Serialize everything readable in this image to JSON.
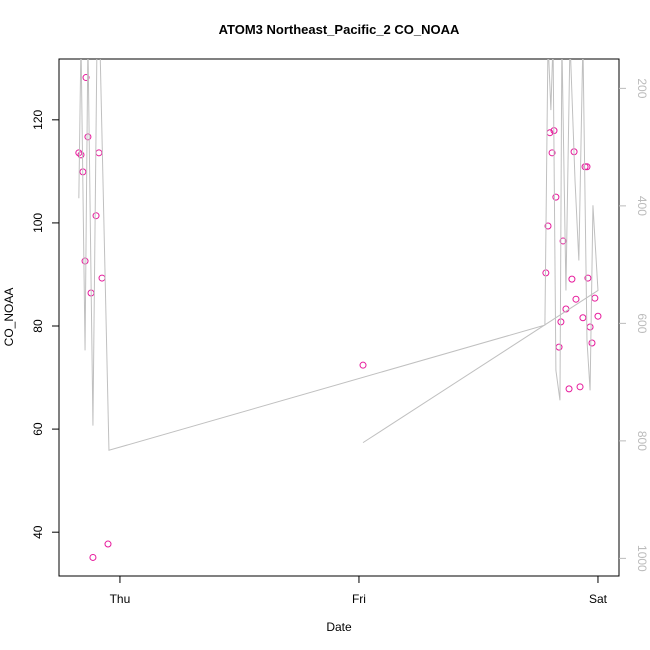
{
  "chart_data": {
    "type": "scatter",
    "title": "ATOM3 Northeast_Pacific_2 CO_NOAA",
    "xlabel": "Date",
    "ylabel": "CO_NOAA",
    "xlim": [
      -0.255,
      2.088
    ],
    "xticks": [
      {
        "value": 0,
        "label": "Thu"
      },
      {
        "value": 1,
        "label": "Fri"
      },
      {
        "value": 2,
        "label": "Sat"
      }
    ],
    "ylim": [
      31.5,
      131.8
    ],
    "yticks": [
      40,
      60,
      80,
      100,
      120
    ],
    "y2lim": [
      1030,
      150
    ],
    "y2ticks": [
      200,
      400,
      600,
      800,
      1000
    ],
    "series": [
      {
        "color": "#e6199b",
        "x": [
          -0.172,
          -0.163,
          -0.155,
          -0.146,
          -0.142,
          -0.134,
          -0.121,
          -0.113,
          -0.1,
          -0.088,
          -0.075,
          -0.05,
          1.017,
          1.782,
          1.791,
          1.799,
          1.808,
          1.816,
          1.824,
          1.837,
          1.845,
          1.854,
          1.866,
          1.879,
          1.891,
          1.9,
          1.908,
          1.925,
          1.937,
          1.946,
          1.954,
          1.958,
          1.967,
          1.975,
          1.987,
          2.0
        ],
        "values": [
          113.6,
          113.2,
          109.9,
          92.6,
          128.2,
          116.7,
          86.4,
          35.1,
          101.4,
          113.6,
          89.3,
          37.7,
          72.4,
          90.3,
          99.4,
          117.5,
          113.6,
          117.9,
          105.0,
          75.9,
          80.8,
          96.5,
          83.3,
          67.8,
          89.1,
          113.8,
          85.2,
          68.2,
          81.6,
          110.9,
          110.9,
          89.3,
          79.8,
          76.7,
          85.4,
          81.9
        ]
      },
      {
        "color": "#c0c0c0",
        "axis": "y2",
        "x": [
          -0.172,
          -0.163,
          -0.146,
          -0.134,
          -0.113,
          -0.096,
          -0.084,
          -0.046,
          1.778,
          1.791,
          1.803,
          1.812,
          1.824,
          1.841,
          1.849,
          1.866,
          1.883,
          1.904,
          1.92,
          1.937,
          1.954,
          1.967,
          1.979,
          2.0,
          1.017
        ],
        "values": [
          387,
          118,
          646,
          118,
          774,
          118,
          118,
          816,
          603,
          118,
          237,
          118,
          680,
          731,
          118,
          544,
          118,
          357,
          493,
          118,
          629,
          714,
          399,
          544,
          803
        ]
      }
    ]
  }
}
